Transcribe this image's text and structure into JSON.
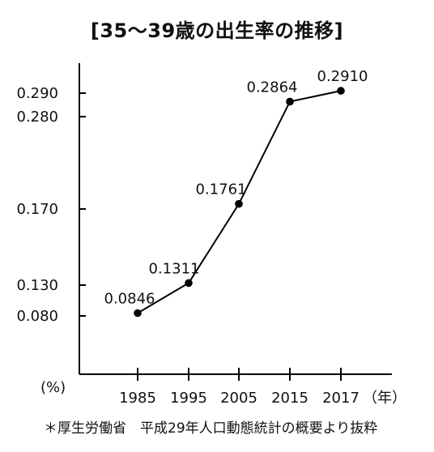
{
  "chart_data": {
    "type": "line",
    "title": "[35〜39歳の出生率の推移]",
    "categories": [
      "1985",
      "1995",
      "2005",
      "2015",
      "2017"
    ],
    "series": [
      {
        "values": [
          0.0846,
          0.1311,
          0.1761,
          0.2864,
          0.291
        ]
      }
    ],
    "data_labels": [
      "0.0846",
      "0.1311",
      "0.1761",
      "0.2864",
      "0.2910"
    ],
    "y_ticks": [
      0.08,
      0.13,
      0.17,
      0.28,
      0.29
    ],
    "y_tick_labels": [
      "0.080",
      "0.130",
      "0.170",
      "0.280",
      "0.290"
    ],
    "ylabel": "(%)",
    "xlabel": "（年）",
    "grid": false,
    "line_color": "#000000",
    "source": "＊厚生労働省　平成29年人口動態統計の概要より抜粋"
  }
}
